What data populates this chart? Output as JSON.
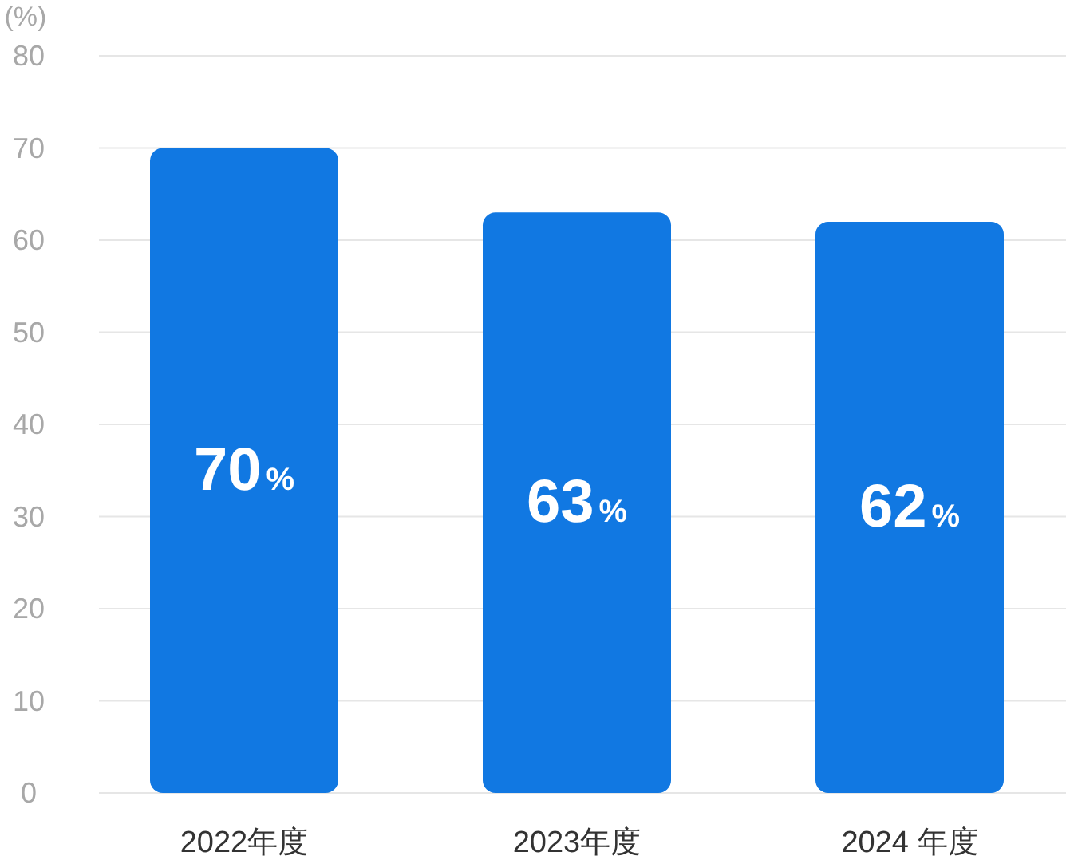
{
  "chart_data": {
    "type": "bar",
    "ylabel": "(%)",
    "categories": [
      "2022年度",
      "2023年度",
      "2024 年度"
    ],
    "values": [
      70,
      63,
      62
    ],
    "value_labels": [
      "70%",
      "63%",
      "62%"
    ],
    "color": "#1178e2",
    "ylim": [
      0,
      80
    ],
    "yticks": [
      0,
      10,
      20,
      30,
      40,
      50,
      60,
      70,
      80
    ],
    "grid": "y"
  }
}
